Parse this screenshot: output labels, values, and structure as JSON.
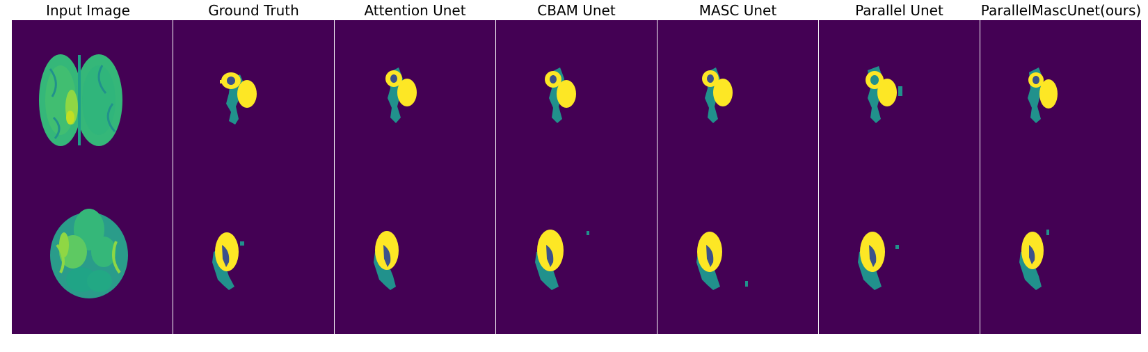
{
  "figure": {
    "columns": [
      {
        "id": "input",
        "title": "Input Image"
      },
      {
        "id": "gt",
        "title": "Ground Truth"
      },
      {
        "id": "attention",
        "title": "Attention Unet"
      },
      {
        "id": "cbam",
        "title": "CBAM Unet"
      },
      {
        "id": "masc",
        "title": "MASC Unet"
      },
      {
        "id": "parallel",
        "title": "Parallel Unet"
      },
      {
        "id": "ours",
        "title": "ParallelMascUnet(ours)"
      }
    ],
    "rows": 2
  },
  "colors": {
    "background": "#440154",
    "edema": "#21918c",
    "enhancing_tumor": "#fde725",
    "necrotic_core": "#3b528b",
    "brain_base": "#35b779",
    "brain_dark": "#1f9e89",
    "brain_light": "#addc30"
  }
}
